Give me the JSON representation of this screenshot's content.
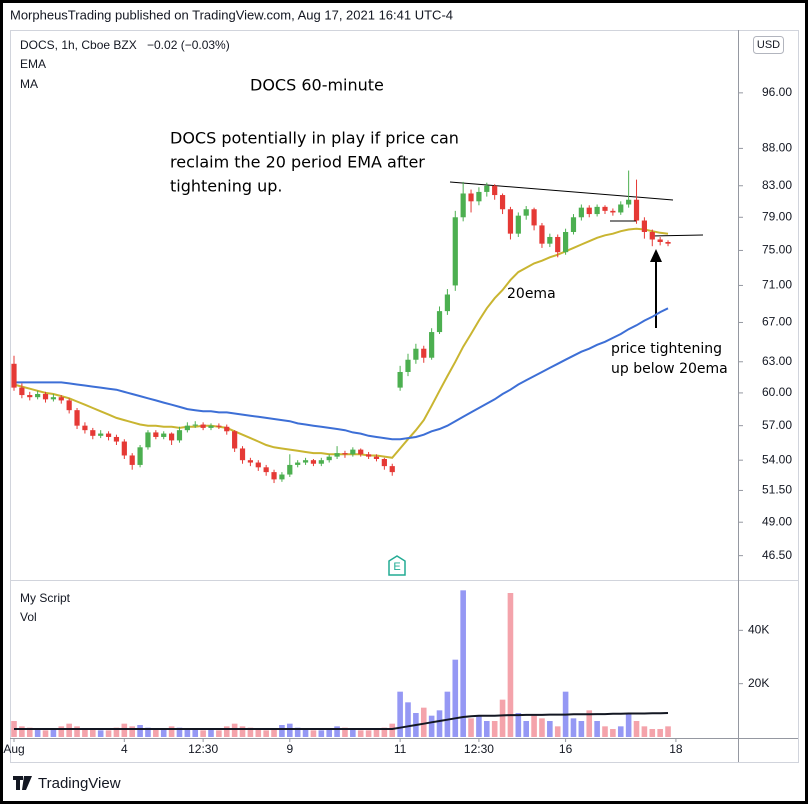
{
  "header": "MorpheusTrading published on TradingView.com, Aug 17, 2021 16:41 UTC-4",
  "footer": "TradingView",
  "chart_data": {
    "type": "candlestick",
    "title": "DOCS 60-minute",
    "symbol": "DOCS, 1h, Cboe BZX",
    "change": "−0.02 (−0.03%)",
    "currency": "USD",
    "earnings_badge": "E",
    "annotation": [
      "DOCS potentially in play if price can",
      "reclaim the 20 period EMA after",
      "tightening up."
    ],
    "ema_label": "20ema",
    "note": [
      "price tightening",
      "up below 20ema"
    ],
    "log_scale": true,
    "up_color": "#4caf50",
    "down_color": "#e53935",
    "categories": [
      "Aug",
      null,
      null,
      null,
      null,
      null,
      null,
      null,
      null,
      null,
      null,
      null,
      null,
      null,
      "4",
      null,
      null,
      null,
      null,
      null,
      null,
      null,
      null,
      null,
      "12:30",
      null,
      null,
      null,
      null,
      null,
      null,
      null,
      null,
      null,
      null,
      "9",
      null,
      null,
      null,
      null,
      null,
      null,
      null,
      null,
      null,
      null,
      null,
      null,
      null,
      "11",
      null,
      null,
      null,
      null,
      null,
      null,
      null,
      null,
      null,
      "12:30",
      null,
      null,
      null,
      null,
      null,
      null,
      null,
      null,
      null,
      null,
      "16",
      null,
      null,
      null,
      null,
      null,
      null,
      null,
      null,
      null,
      null,
      null,
      null,
      null,
      "18"
    ],
    "open": [
      62.8,
      60.5,
      59.8,
      59.6,
      59.9,
      59.4,
      59.6,
      59.3,
      58.4,
      57.0,
      56.6,
      56.1,
      56.3,
      56.0,
      55.6,
      54.4,
      53.6,
      55.1,
      56.4,
      56.0,
      56.3,
      55.7,
      56.6,
      57.0,
      57.1,
      56.8,
      57.0,
      56.9,
      56.5,
      55.0,
      54.0,
      53.8,
      53.4,
      53.0,
      52.4,
      52.8,
      53.6,
      53.8,
      54.0,
      53.7,
      54.0,
      54.3,
      54.6,
      54.5,
      54.9,
      54.5,
      54.3,
      54.1,
      53.5,
      60.5,
      62.0,
      63.2,
      64.3,
      63.4,
      66.0,
      68.2,
      71.0,
      79.0,
      82.0,
      81.0,
      82.2,
      83.0,
      81.8,
      80.0,
      77.0,
      79.2,
      80.0,
      78.0,
      75.8,
      76.6,
      74.8,
      77.2,
      79.0,
      80.2,
      79.4,
      80.3,
      79.8,
      79.6,
      80.6,
      81.2,
      78.6,
      77.2,
      76.3,
      76.0,
      null
    ],
    "high": [
      63.6,
      60.9,
      60.1,
      60.2,
      60.1,
      59.9,
      59.8,
      59.5,
      58.6,
      57.3,
      56.8,
      56.6,
      56.5,
      56.2,
      55.8,
      54.6,
      55.3,
      56.6,
      56.6,
      56.5,
      56.4,
      56.9,
      57.3,
      57.4,
      57.3,
      57.2,
      57.2,
      57.1,
      56.6,
      55.2,
      54.2,
      54.0,
      53.6,
      53.2,
      53.0,
      54.5,
      54.0,
      54.2,
      54.1,
      54.2,
      54.5,
      55.2,
      54.8,
      55.1,
      55.0,
      54.7,
      54.5,
      54.2,
      53.7,
      62.6,
      63.8,
      64.8,
      64.6,
      66.4,
      68.7,
      70.6,
      79.8,
      83.5,
      82.5,
      82.8,
      83.4,
      83.2,
      82.0,
      80.3,
      79.6,
      80.4,
      80.2,
      78.3,
      77.0,
      76.9,
      77.6,
      79.4,
      80.6,
      80.5,
      80.6,
      80.5,
      80.1,
      81.0,
      85.0,
      83.8,
      79.0,
      77.5,
      76.6,
      76.2,
      null
    ],
    "low": [
      60.2,
      59.5,
      59.3,
      59.4,
      59.1,
      59.2,
      59.0,
      58.1,
      56.7,
      56.3,
      55.8,
      55.9,
      55.7,
      55.3,
      54.1,
      53.2,
      53.4,
      54.9,
      55.8,
      55.8,
      55.3,
      55.5,
      56.4,
      56.8,
      56.6,
      56.6,
      56.7,
      56.2,
      54.7,
      53.7,
      53.5,
      53.1,
      52.7,
      52.1,
      52.2,
      52.6,
      53.4,
      53.6,
      53.5,
      53.5,
      53.8,
      54.1,
      54.2,
      54.3,
      54.3,
      54.1,
      53.9,
      53.2,
      52.7,
      60.2,
      61.6,
      62.8,
      62.9,
      63.2,
      65.8,
      67.8,
      70.4,
      78.5,
      79.6,
      80.5,
      81.6,
      81.2,
      79.4,
      76.3,
      76.6,
      78.7,
      77.4,
      75.3,
      75.4,
      74.2,
      74.5,
      76.9,
      78.6,
      79.0,
      79.1,
      79.4,
      79.2,
      79.3,
      80.2,
      78.2,
      76.4,
      75.5,
      75.6,
      75.5,
      null
    ],
    "close": [
      60.5,
      59.8,
      59.6,
      59.9,
      59.4,
      59.6,
      59.3,
      58.4,
      57.0,
      56.6,
      56.1,
      56.3,
      56.0,
      55.6,
      54.4,
      53.6,
      55.1,
      56.4,
      56.0,
      56.3,
      55.7,
      56.6,
      57.0,
      57.1,
      56.8,
      57.0,
      56.9,
      56.5,
      55.0,
      54.0,
      53.8,
      53.4,
      53.0,
      52.4,
      52.8,
      53.6,
      53.8,
      54.0,
      53.7,
      54.0,
      54.3,
      54.6,
      54.5,
      54.9,
      54.5,
      54.3,
      54.1,
      53.5,
      53.0,
      62.0,
      63.2,
      64.3,
      63.4,
      66.0,
      68.2,
      70.0,
      79.0,
      82.0,
      81.0,
      82.2,
      83.0,
      81.8,
      80.0,
      77.0,
      79.2,
      80.0,
      78.0,
      75.8,
      76.6,
      74.8,
      77.2,
      79.0,
      80.2,
      79.4,
      80.3,
      79.8,
      79.6,
      80.6,
      81.2,
      78.6,
      77.2,
      76.3,
      76.0,
      75.8,
      null
    ],
    "series": [
      {
        "name": "EMA",
        "color": "#c9b531",
        "values": [
          60.8,
          60.6,
          60.4,
          60.2,
          60.0,
          59.9,
          59.7,
          59.5,
          59.2,
          58.9,
          58.6,
          58.3,
          58.0,
          57.7,
          57.5,
          57.3,
          57.1,
          57.0,
          57.0,
          56.9,
          56.9,
          56.8,
          56.9,
          56.9,
          57.0,
          57.0,
          56.9,
          56.8,
          56.5,
          56.2,
          55.9,
          55.6,
          55.3,
          55.1,
          55.0,
          54.9,
          54.8,
          54.7,
          54.6,
          54.6,
          54.5,
          54.5,
          54.5,
          54.5,
          54.5,
          54.4,
          54.4,
          54.3,
          54.2,
          55.0,
          55.8,
          56.6,
          57.5,
          58.8,
          60.2,
          61.6,
          63.0,
          64.5,
          65.8,
          67.2,
          68.5,
          69.6,
          70.5,
          71.6,
          72.5,
          73.0,
          73.5,
          73.8,
          74.2,
          74.5,
          74.9,
          75.3,
          75.7,
          76.1,
          76.5,
          76.8,
          77.0,
          77.3,
          77.5,
          77.6,
          77.5,
          77.3,
          77.1,
          77.0,
          null
        ]
      },
      {
        "name": "MA",
        "color": "#3d6fd6",
        "values": [
          61.0,
          61.0,
          61.0,
          61.0,
          61.0,
          61.0,
          61.0,
          60.9,
          60.8,
          60.7,
          60.6,
          60.5,
          60.4,
          60.3,
          60.1,
          59.9,
          59.7,
          59.5,
          59.3,
          59.1,
          58.9,
          58.7,
          58.5,
          58.4,
          58.3,
          58.3,
          58.2,
          58.2,
          58.1,
          58.0,
          57.9,
          57.8,
          57.7,
          57.6,
          57.5,
          57.4,
          57.2,
          57.1,
          57.0,
          56.9,
          56.8,
          56.7,
          56.6,
          56.4,
          56.3,
          56.1,
          56.0,
          55.9,
          55.8,
          55.8,
          55.9,
          56.0,
          56.2,
          56.5,
          56.7,
          57.0,
          57.4,
          57.8,
          58.2,
          58.6,
          59.0,
          59.4,
          59.9,
          60.3,
          60.8,
          61.2,
          61.6,
          62.0,
          62.4,
          62.8,
          63.2,
          63.6,
          64.0,
          64.3,
          64.7,
          65.0,
          65.4,
          65.8,
          66.3,
          66.7,
          67.2,
          67.6,
          68.1,
          68.5,
          null
        ]
      }
    ],
    "ylim": [
      44.9,
      105.6
    ],
    "yticks": [
      {
        "value": 96,
        "label": "96.00"
      },
      {
        "value": 88,
        "label": "88.00"
      },
      {
        "value": 83,
        "label": "83.00"
      },
      {
        "value": 79,
        "label": "79.00"
      },
      {
        "value": 75,
        "label": "75.00"
      },
      {
        "value": 71,
        "label": "71.00"
      },
      {
        "value": 67,
        "label": "67.00"
      },
      {
        "value": 63,
        "label": "63.00"
      },
      {
        "value": 60,
        "label": "60.00"
      },
      {
        "value": 57,
        "label": "57.00"
      },
      {
        "value": 54,
        "label": "54.00"
      },
      {
        "value": 51.5,
        "label": "51.50"
      },
      {
        "value": 49,
        "label": "49.00"
      },
      {
        "value": 46.5,
        "label": "46.50"
      }
    ],
    "volume": {
      "script": "My Script",
      "name": "Vol",
      "up_color": "#9598f4",
      "down_color": "#f4a3ab",
      "ma_color": "#131722",
      "values": [
        6000,
        4000,
        3500,
        3000,
        2500,
        3000,
        4000,
        5000,
        4000,
        3000,
        3000,
        2500,
        2500,
        3500,
        5000,
        4000,
        4500,
        3500,
        3000,
        3000,
        4000,
        3500,
        3000,
        3000,
        2500,
        3000,
        2500,
        4000,
        5000,
        4000,
        3500,
        3000,
        2500,
        3000,
        4500,
        5000,
        3500,
        3000,
        2500,
        2500,
        3000,
        4000,
        3500,
        3000,
        2500,
        2500,
        3000,
        3500,
        5000,
        17000,
        13000,
        9000,
        11000,
        8000,
        10000,
        17000,
        29000,
        55000,
        7000,
        8000,
        6000,
        6000,
        14000,
        54000,
        9000,
        6000,
        8000,
        7000,
        6000,
        4000,
        17000,
        7000,
        6000,
        10000,
        6000,
        4000,
        3000,
        4000,
        9000,
        6000,
        4000,
        3000,
        3000,
        4000,
        null
      ],
      "ma": [
        3000,
        3000,
        3000,
        3000,
        3000,
        3000,
        3000,
        3000,
        3000,
        3000,
        3000,
        3000,
        3000,
        3000,
        3000,
        3000,
        3000,
        3000,
        3000,
        3000,
        3000,
        3000,
        3000,
        3000,
        3000,
        3000,
        3000,
        3000,
        3000,
        3000,
        3000,
        3000,
        3000,
        3000,
        3000,
        3000,
        3000,
        3000,
        3000,
        3000,
        3000,
        3000,
        3000,
        3000,
        3000,
        3000,
        3000,
        3000,
        3000,
        3500,
        4000,
        4500,
        5000,
        5500,
        6000,
        6500,
        7000,
        7500,
        7800,
        8000,
        8000,
        8000,
        8100,
        8200,
        8200,
        8300,
        8300,
        8300,
        8400,
        8400,
        8400,
        8500,
        8500,
        8500,
        8600,
        8600,
        8700,
        8700,
        8800,
        8800,
        8800,
        8900,
        8900,
        9000,
        null
      ],
      "ylim": [
        0,
        57000
      ],
      "yticks": [
        {
          "value": 40000,
          "label": "40K"
        },
        {
          "value": 20000,
          "label": "20K"
        }
      ]
    }
  }
}
